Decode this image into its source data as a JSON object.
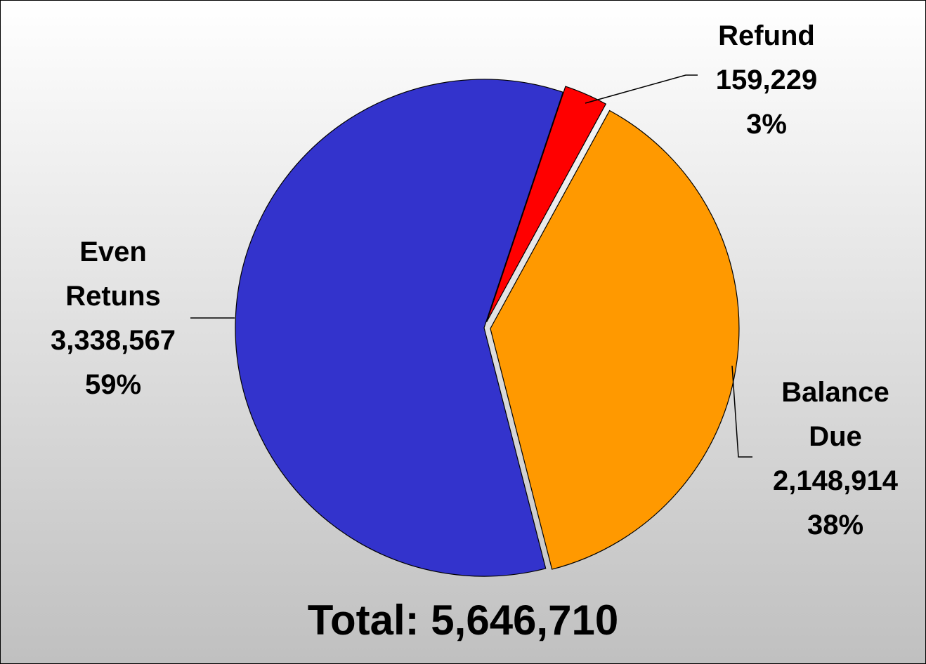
{
  "chart_data": {
    "type": "pie",
    "categories": [
      "Refund",
      "Balance Due",
      "Even Retuns"
    ],
    "values": [
      159229,
      2148914,
      3338567
    ],
    "value_labels": [
      "159,229",
      "2,148,914",
      "3,338,567"
    ],
    "percents": [
      3,
      38,
      59
    ],
    "percent_labels": [
      "3%",
      "38%",
      "59%"
    ],
    "colors": [
      "#ff0000",
      "#ff9900",
      "#3333cc"
    ],
    "annotation": "Total: 5,646,710"
  }
}
